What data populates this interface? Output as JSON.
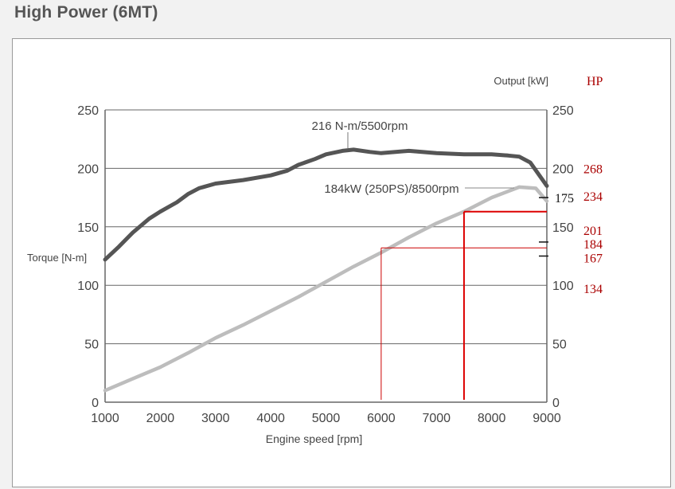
{
  "page": {
    "title": "High Power (6MT)"
  },
  "chart_data": {
    "type": "line",
    "title": "High Power (6MT)",
    "xlabel": "Engine speed [rpm]",
    "ylabel_left": "Torque [N-m]",
    "ylabel_right": "Output [kW]",
    "right_unit_annotation": "HP",
    "xlim": [
      1000,
      9000
    ],
    "ylim_left": [
      0,
      250
    ],
    "ylim_right": [
      0,
      250
    ],
    "x_ticks": [
      1000,
      2000,
      3000,
      4000,
      5000,
      6000,
      7000,
      8000,
      9000
    ],
    "y_ticks_left": [
      0,
      50,
      100,
      150,
      200,
      250
    ],
    "y_ticks_right": [
      0,
      50,
      100,
      150,
      200,
      250
    ],
    "grid": "horizontal",
    "series": [
      {
        "name": "Torque",
        "axis": "left",
        "color": "#555555",
        "x": [
          1000,
          1250,
          1500,
          1800,
          2000,
          2300,
          2500,
          2700,
          3000,
          3500,
          4000,
          4300,
          4500,
          4800,
          5000,
          5300,
          5500,
          5800,
          6000,
          6500,
          7000,
          7500,
          8000,
          8300,
          8500,
          8700,
          9000
        ],
        "y": [
          122,
          133,
          145,
          157,
          163,
          171,
          178,
          183,
          187,
          190,
          194,
          198,
          203,
          208,
          212,
          215,
          216,
          214,
          213,
          215,
          213,
          212,
          212,
          211,
          210,
          205,
          185
        ]
      },
      {
        "name": "Output",
        "axis": "right",
        "color": "#bdbdbd",
        "x": [
          1000,
          1500,
          2000,
          2500,
          3000,
          3500,
          4000,
          4500,
          5000,
          5500,
          6000,
          6500,
          7000,
          7500,
          8000,
          8500,
          8800,
          9000
        ],
        "y": [
          10,
          20,
          30,
          42,
          55,
          66,
          78,
          90,
          103,
          116,
          128,
          141,
          153,
          163,
          175,
          184,
          183,
          172
        ]
      }
    ],
    "annotations": {
      "torque_peak": "216 N-m/5500rpm",
      "power_peak": "184kW (250PS)/8500rpm",
      "hp_labels": [
        {
          "value": 268,
          "at_kw": 200
        },
        {
          "value": 234,
          "at_kw": 175
        },
        {
          "value": 201,
          "at_kw": 150
        },
        {
          "value": 184,
          "at_kw": 137
        },
        {
          "value": 167,
          "at_kw": 125
        },
        {
          "value": 134,
          "at_kw": 100
        }
      ],
      "extra_tick_label": {
        "value": "175",
        "at_kw": 175
      },
      "extra_ticks_kw": [
        175,
        137,
        125
      ],
      "marker_lines": [
        {
          "rpm": 6000,
          "kw": 132,
          "color": "#cc0000",
          "width": 1
        },
        {
          "rpm": 7500,
          "kw": 163,
          "color": "#dd0000",
          "width": 2
        }
      ],
      "annotation_color": "#aa0000"
    }
  }
}
